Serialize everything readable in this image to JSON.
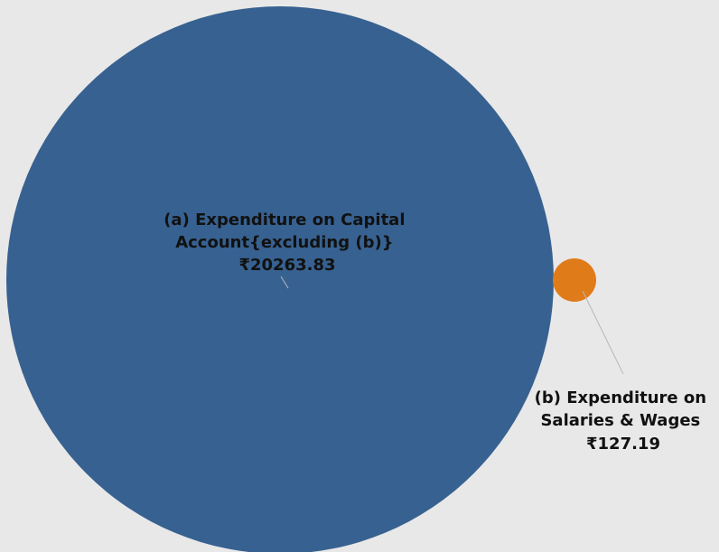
{
  "chart_data": {
    "type": "bubble",
    "title": "",
    "series": [
      {
        "label_lines": [
          "(a) Expenditure on Capital",
          "Account{excluding (b)}"
        ],
        "value_label": "₹20263.83",
        "value": 20263.83,
        "color": "#376190"
      },
      {
        "label_lines": [
          "(b) Expenditure on",
          "Salaries & Wages"
        ],
        "value_label": "₹127.19",
        "value": 127.19,
        "color": "#e07b1a"
      }
    ]
  },
  "colors": {
    "background": "#e8e8e8",
    "leader_line": "#b8b8b8"
  }
}
